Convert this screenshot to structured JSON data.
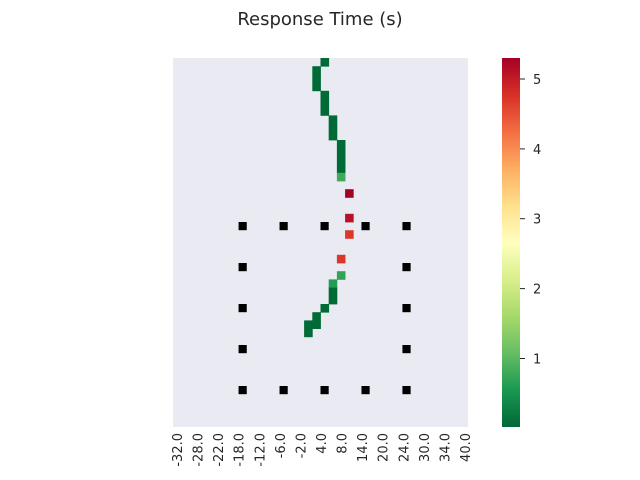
{
  "chart_data": {
    "type": "heatmap",
    "title": "Response Time (s)",
    "xlabel": "",
    "ylabel": "",
    "x_tick_labels": [
      "-32.0",
      "-28.0",
      "-22.0",
      "-18.0",
      "-12.0",
      "-6.0",
      "-2.0",
      "4.0",
      "8.0",
      "14.0",
      "20.0",
      "24.0",
      "30.0",
      "34.0",
      "40.0"
    ],
    "colorbar": {
      "ticks": [
        1,
        2,
        3,
        4,
        5
      ],
      "tick_labels": [
        "1",
        "2",
        "3",
        "4",
        "5"
      ],
      "range": [
        0.02,
        5.3
      ],
      "colormap": "RdYlGn_r"
    },
    "grid_shape": {
      "columns": 36,
      "rows": 45
    },
    "cells": [
      {
        "col": 18,
        "row": 0,
        "value": 0.05
      },
      {
        "col": 17,
        "row": 1,
        "value": 0.05
      },
      {
        "col": 17,
        "row": 2,
        "value": 0.05
      },
      {
        "col": 17,
        "row": 3,
        "value": 0.05
      },
      {
        "col": 18,
        "row": 4,
        "value": 0.05
      },
      {
        "col": 18,
        "row": 5,
        "value": 0.05
      },
      {
        "col": 18,
        "row": 6,
        "value": 0.05
      },
      {
        "col": 19,
        "row": 7,
        "value": 0.05
      },
      {
        "col": 19,
        "row": 8,
        "value": 0.05
      },
      {
        "col": 19,
        "row": 9,
        "value": 0.05
      },
      {
        "col": 20,
        "row": 10,
        "value": 0.05
      },
      {
        "col": 20,
        "row": 11,
        "value": 0.05
      },
      {
        "col": 20,
        "row": 12,
        "value": 0.05
      },
      {
        "col": 20,
        "row": 13,
        "value": 0.05
      },
      {
        "col": 20,
        "row": 14,
        "value": 0.8
      },
      {
        "col": 21,
        "row": 16,
        "value": 5.3
      },
      {
        "col": 21,
        "row": 19,
        "value": 5.1
      },
      {
        "col": 21,
        "row": 21,
        "value": 4.7
      },
      {
        "col": 20,
        "row": 24,
        "value": 4.7
      },
      {
        "col": 20,
        "row": 26,
        "value": 0.7
      },
      {
        "col": 19,
        "row": 27,
        "value": 0.6
      },
      {
        "col": 19,
        "row": 28,
        "value": 0.05
      },
      {
        "col": 19,
        "row": 29,
        "value": 0.05
      },
      {
        "col": 18,
        "row": 30,
        "value": 0.05
      },
      {
        "col": 17,
        "row": 31,
        "value": 0.05
      },
      {
        "col": 17,
        "row": 32,
        "value": 0.05
      },
      {
        "col": 16,
        "row": 32,
        "value": 0.05
      },
      {
        "col": 16,
        "row": 33,
        "value": 0.05
      }
    ],
    "markers": [
      {
        "col": 8,
        "row": 20
      },
      {
        "col": 13,
        "row": 20
      },
      {
        "col": 18,
        "row": 20
      },
      {
        "col": 23,
        "row": 20
      },
      {
        "col": 28,
        "row": 20
      },
      {
        "col": 8,
        "row": 25
      },
      {
        "col": 28,
        "row": 25
      },
      {
        "col": 8,
        "row": 30
      },
      {
        "col": 28,
        "row": 30
      },
      {
        "col": 8,
        "row": 35
      },
      {
        "col": 28,
        "row": 35
      },
      {
        "col": 8,
        "row": 40
      },
      {
        "col": 13,
        "row": 40
      },
      {
        "col": 18,
        "row": 40
      },
      {
        "col": 23,
        "row": 40
      },
      {
        "col": 28,
        "row": 40
      }
    ],
    "colors": {
      "plot_background": "#eaeaf2",
      "marker": "#000000",
      "text": "#262626"
    }
  }
}
